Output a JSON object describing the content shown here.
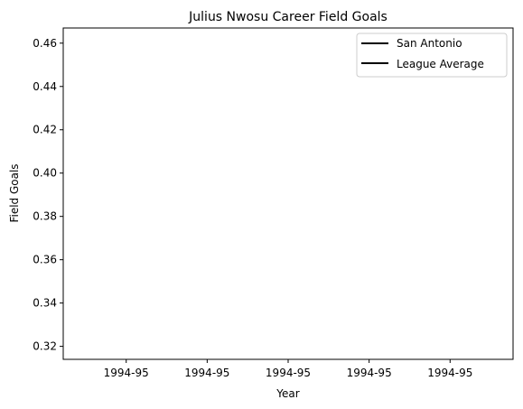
{
  "chart_data": {
    "type": "line",
    "title": "Julius Nwosu Career Field Goals",
    "xlabel": "Year",
    "ylabel": "Field Goals",
    "x_tick_labels": [
      "1994-95",
      "1994-95",
      "1994-95",
      "1994-95",
      "1994-95"
    ],
    "y_ticks": [
      0.32,
      0.34,
      0.36,
      0.38,
      0.4,
      0.42,
      0.44,
      0.46
    ],
    "y_tick_labels": [
      "0.32",
      "0.34",
      "0.36",
      "0.38",
      "0.40",
      "0.42",
      "0.44",
      "0.46"
    ],
    "ylim": [
      0.314,
      0.467
    ],
    "grid": false,
    "legend_placement": "upper-right",
    "series": [
      {
        "name": "San Antonio",
        "color": "#000000",
        "values": []
      },
      {
        "name": "League Average",
        "color": "#000000",
        "values": []
      }
    ]
  }
}
